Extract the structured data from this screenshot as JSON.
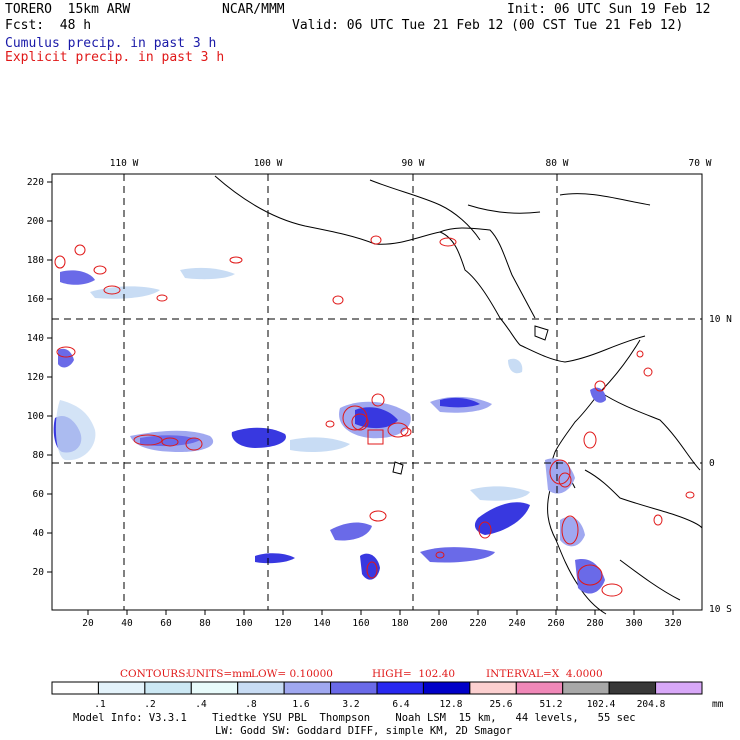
{
  "header": {
    "model": "TORERO  15km ARW",
    "org": "NCAR/MMM",
    "init": "Init: 06 UTC Sun 19 Feb 12",
    "fcst": "Fcst:  48 h",
    "valid": "Valid: 06 UTC Tue 21 Feb 12 (00 CST Tue 21 Feb 12)",
    "field1": "Cumulus precip. in past 3 h",
    "field2": "Explicit precip. in past 3 h"
  },
  "colors": {
    "field1": "#1a1aa8",
    "field2": "#e01818",
    "contour": "#e01818"
  },
  "lon_labels": [
    "110 W",
    "100 W",
    "90 W",
    "80 W",
    "70 W"
  ],
  "lat_labels": [
    "10 N",
    "0",
    "10 S"
  ],
  "y_ticks": [
    "220",
    "200",
    "180",
    "160",
    "140",
    "120",
    "100",
    "80",
    "60",
    "40",
    "20"
  ],
  "x_ticks": [
    "20",
    "40",
    "60",
    "80",
    "100",
    "120",
    "140",
    "160",
    "180",
    "200",
    "220",
    "240",
    "260",
    "280",
    "300",
    "320"
  ],
  "contours": {
    "label": "CONTOURS:",
    "units": "UNITS=mm",
    "low": "LOW= 0.10000",
    "high": "HIGH=  102.40",
    "interval": "INTERVAL=X  4.0000"
  },
  "colorbar": {
    "labels": [
      ".1",
      ".2",
      ".4",
      ".8",
      "1.6",
      "3.2",
      "6.4",
      "12.8",
      "25.6",
      "51.2",
      "102.4",
      "204.8"
    ],
    "unit": "mm",
    "colors": [
      "#ffffff",
      "#e4f3fb",
      "#cce8f4",
      "#e8fbfb",
      "#c8dcf4",
      "#a0a8f0",
      "#6a6ae8",
      "#2828f0",
      "#0000c8",
      "#fcd0d0",
      "#f088b8",
      "#a8a8a8",
      "#383838",
      "#d8a8f8"
    ]
  },
  "footer": {
    "line1": "Model Info: V3.3.1    Tiedtke YSU PBL  Thompson    Noah LSM  15 km,   44 levels,   55 sec",
    "line2": "LW: Godd SW: Goddard DIFF, simple KM, 2D Smagor"
  }
}
